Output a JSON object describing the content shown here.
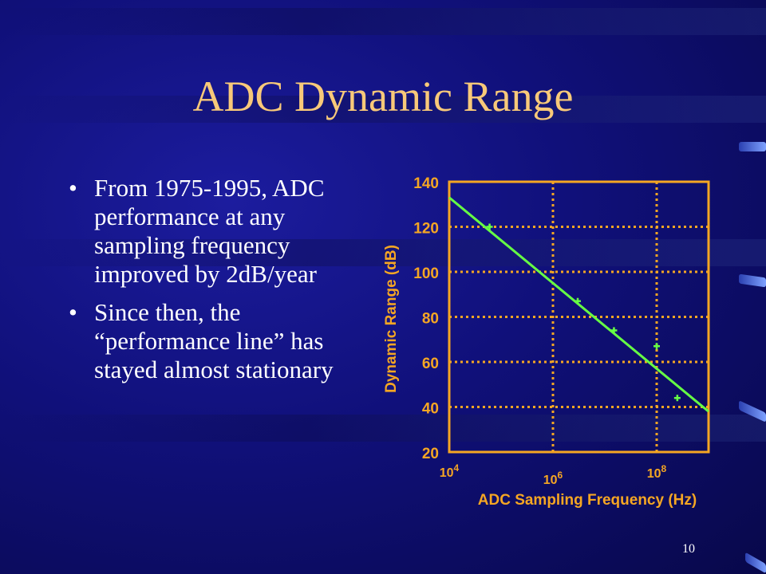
{
  "slide": {
    "title": "ADC Dynamic Range",
    "bullets": [
      "From 1975-1995, ADC performance at any sampling frequency improved by 2dB/year",
      "Since then, the “performance line” has stayed almost stationary"
    ],
    "slide_number": "10"
  },
  "colors": {
    "title": "#f8c979",
    "chart_text": "#f5a623",
    "axes": "#f5a623",
    "grid": "#f5a623",
    "line": "#66ff44",
    "points": "#66ff44"
  },
  "chart_data": {
    "type": "scatter",
    "xlabel": "ADC Sampling Frequency (Hz)",
    "ylabel": "Dynamic Range (dB)",
    "x_scale": "log",
    "xlim": [
      10000,
      1000000000
    ],
    "ylim": [
      20,
      140
    ],
    "x_ticks": [
      {
        "value": 10000,
        "base": "10",
        "exp": "4"
      },
      {
        "value": 1000000,
        "base": "10",
        "exp": "6"
      },
      {
        "value": 100000000,
        "base": "10",
        "exp": "8"
      }
    ],
    "y_ticks": [
      "140",
      "120",
      "100",
      "80",
      "60",
      "40",
      "20"
    ],
    "grid": "dotted",
    "series": [
      {
        "kind": "points",
        "x": [
          60000,
          3000000,
          15000000,
          100000000,
          250000000
        ],
        "y": [
          120,
          87,
          74,
          67,
          44
        ]
      },
      {
        "kind": "line",
        "x": [
          10000,
          1000000000
        ],
        "y": [
          133,
          38
        ]
      }
    ]
  }
}
